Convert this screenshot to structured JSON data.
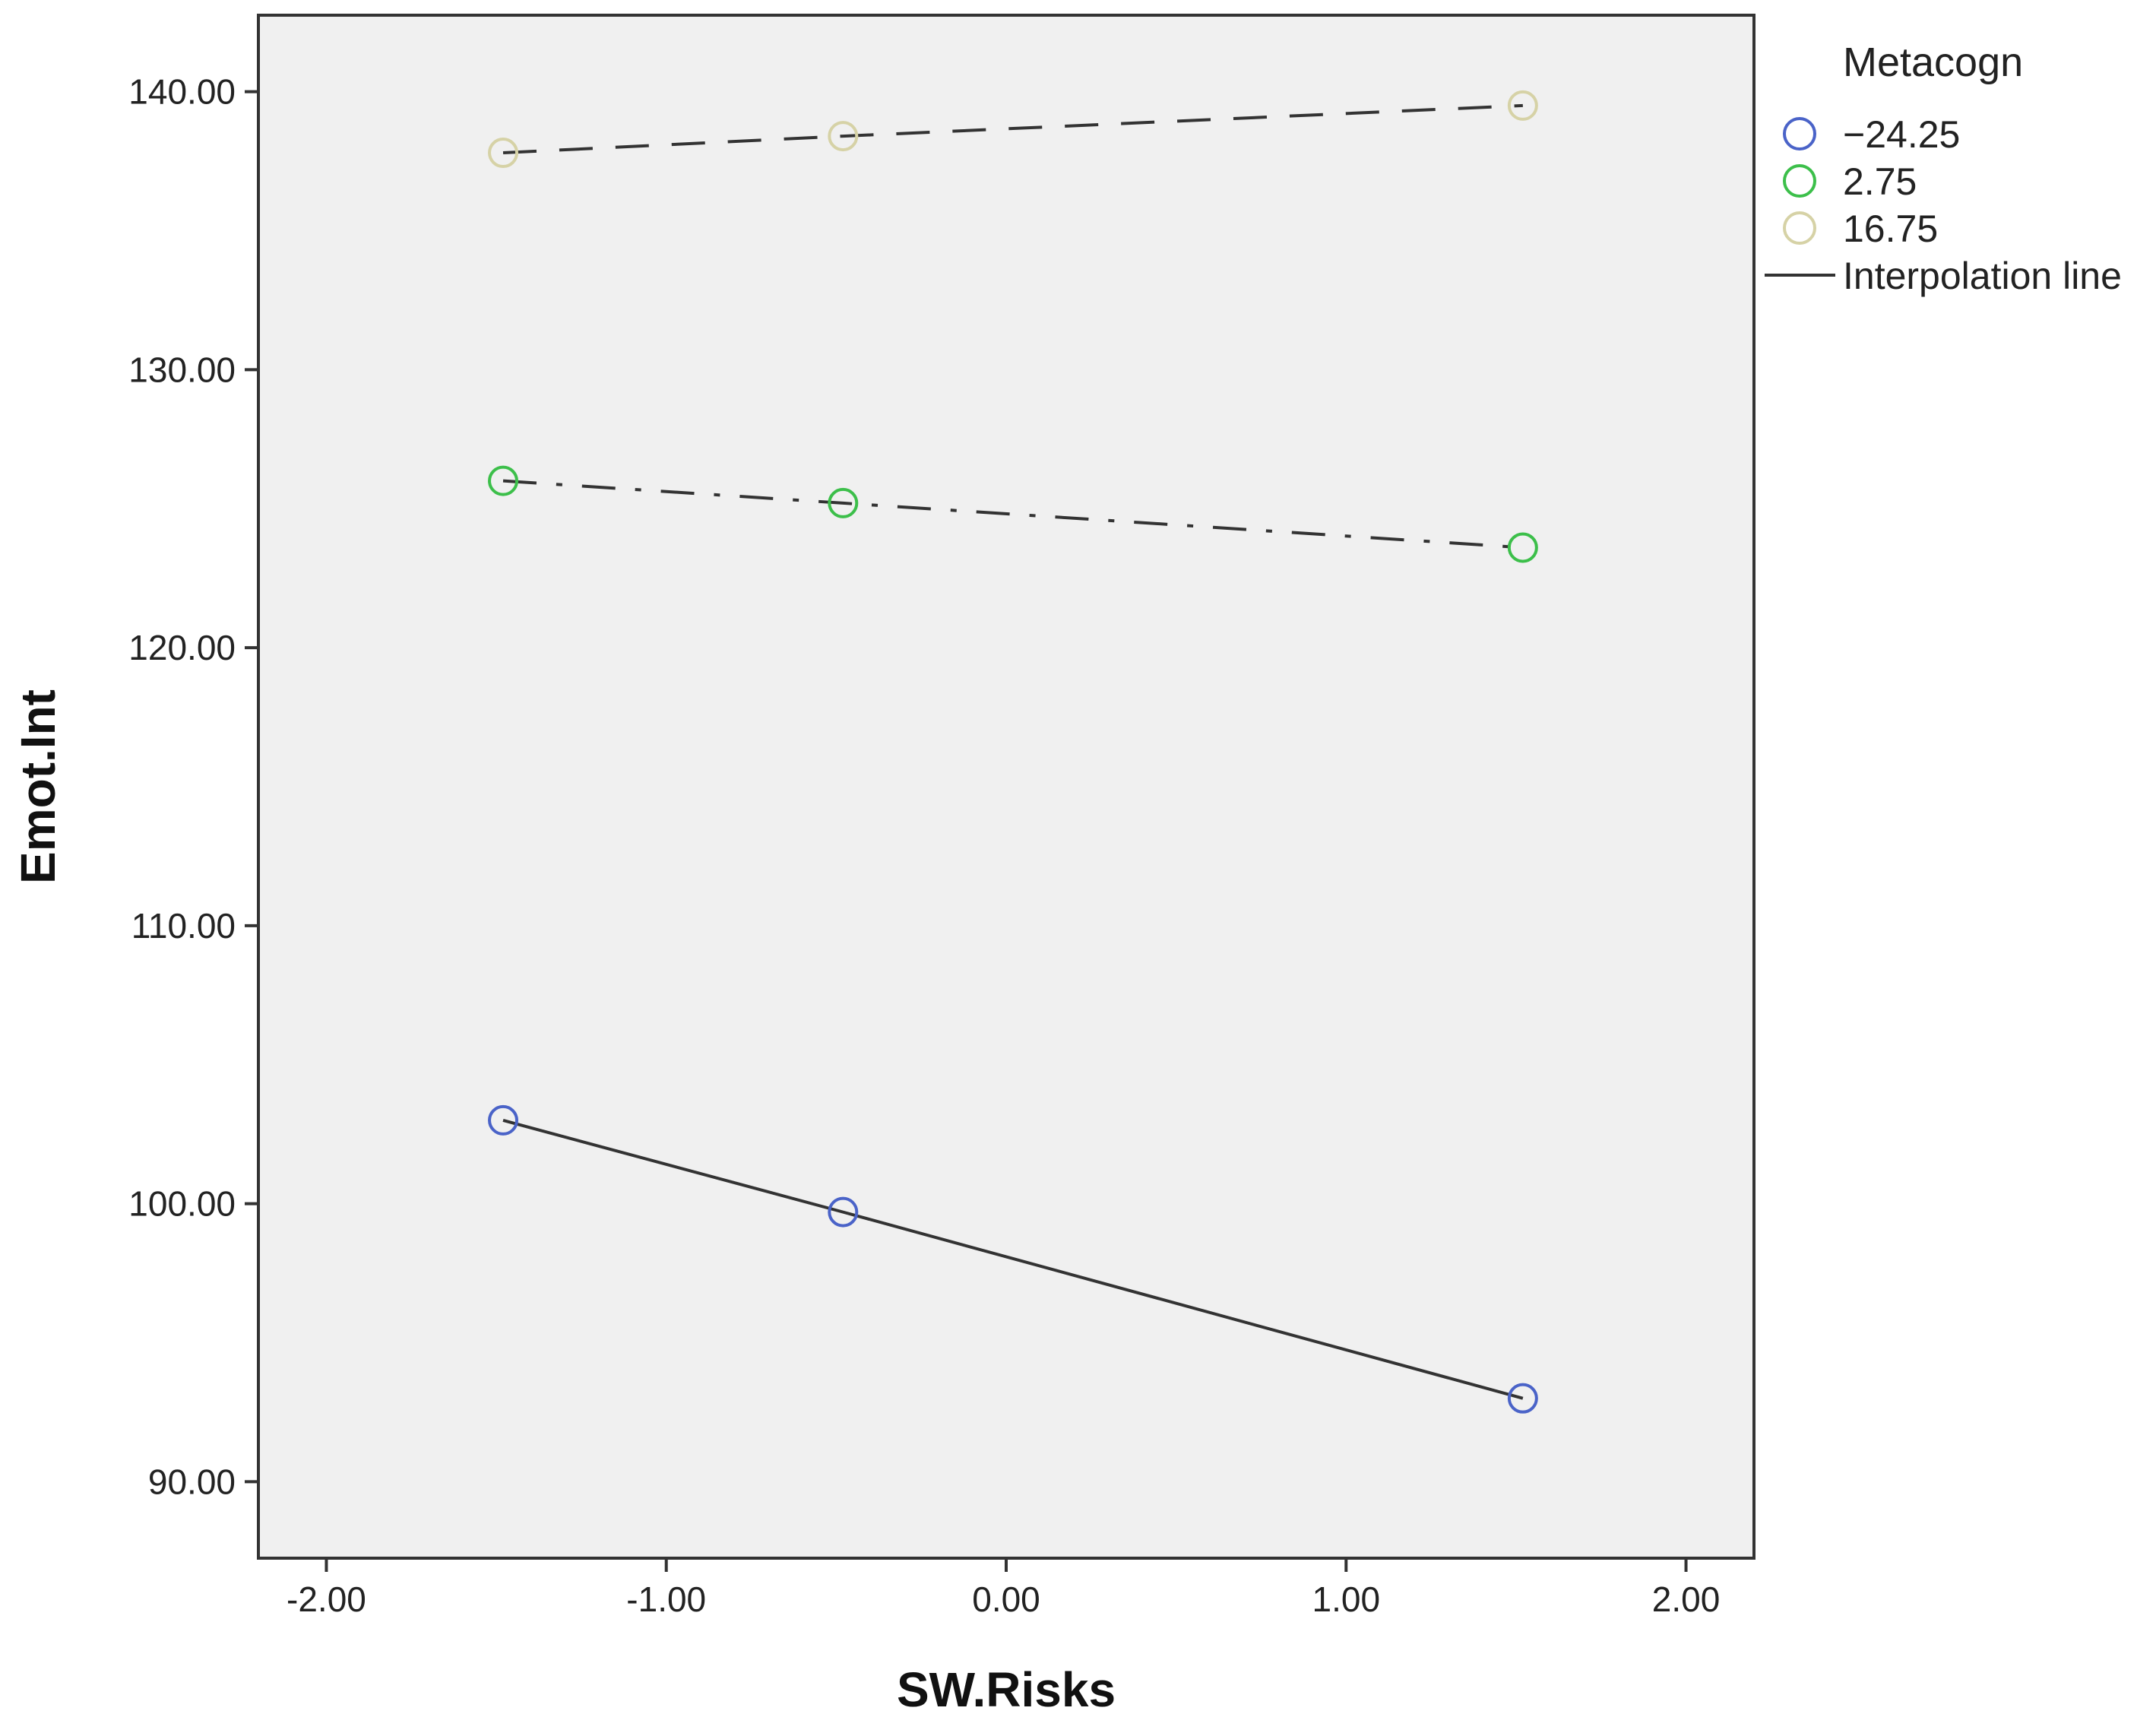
{
  "chart_data": {
    "type": "line",
    "title": "",
    "xlabel": "SW.Risks",
    "ylabel": "Emot.Int",
    "xlim": [
      -2.2,
      2.2
    ],
    "ylim": [
      87.25,
      142.75
    ],
    "x_ticks": [
      -2.0,
      -1.0,
      0.0,
      1.0,
      2.0
    ],
    "x_tick_labels": [
      "-2.00",
      "-1.00",
      "0.00",
      "1.00",
      "2.00"
    ],
    "y_ticks": [
      90,
      100,
      110,
      120,
      130,
      140
    ],
    "y_tick_labels": [
      "90.00",
      "100.00",
      "110.00",
      "120.00",
      "130.00",
      "140.00"
    ],
    "grid": false,
    "legend": {
      "title": "Metacogn",
      "position": "top-right, outside plot",
      "extra_entry": "Interpolation line"
    },
    "series": [
      {
        "name": "-24.25",
        "label": "−24.25",
        "marker_color": "#4a63c8",
        "line_style": "solid",
        "x": [
          -1.48,
          -0.48,
          1.52
        ],
        "y": [
          103.0,
          99.7,
          93.0
        ]
      },
      {
        "name": "2.75",
        "label": "2.75",
        "marker_color": "#3cbf4a",
        "line_style": "dash-dot",
        "x": [
          -1.48,
          -0.48,
          1.52
        ],
        "y": [
          126.0,
          125.2,
          123.6
        ]
      },
      {
        "name": "16.75",
        "label": "16.75",
        "marker_color": "#d6d2a6",
        "line_style": "dashed",
        "x": [
          -1.48,
          -0.48,
          1.52
        ],
        "y": [
          137.8,
          138.4,
          139.5
        ]
      }
    ]
  }
}
